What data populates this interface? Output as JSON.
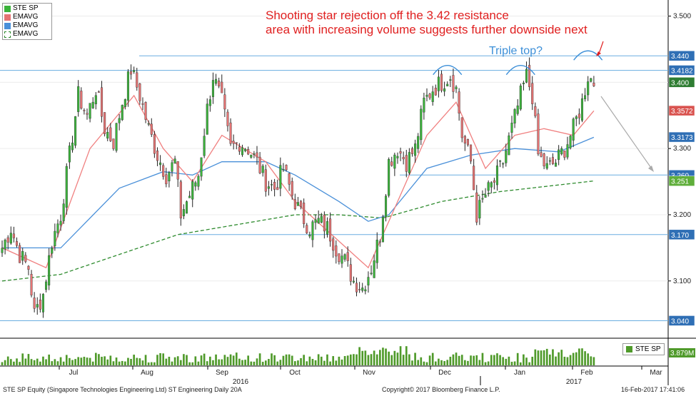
{
  "legend": {
    "items": [
      {
        "label": "STE SP",
        "color": "#3bb33b"
      },
      {
        "label": "EMAVG",
        "color": "#e57373"
      },
      {
        "label": "EMAVG",
        "color": "#4a90d9"
      },
      {
        "label": "EMAVG",
        "color": "#2e8b2e"
      }
    ]
  },
  "annotations": {
    "main_line1": "Shooting star rejection off the 3.42 resistance",
    "main_line2": "area with increasing volume suggests further downside next",
    "triple_top": "Triple top?"
  },
  "volume_legend": "STE SP",
  "footer": {
    "left": "STE SP Equity (Singapore Technologies Engineering Ltd) ST Engineering  Daily 20A",
    "center": "Copyright© 2017 Bloomberg Finance L.P.",
    "right": "16-Feb-2017 17:41:06"
  },
  "colors": {
    "up": "#3bb33b",
    "down": "#e57373",
    "ema_short": "#f08080",
    "ema_mid": "#4a90d9",
    "ema_long": "#2e8b2e",
    "hline": "#6aaee0",
    "annotation_red": "#e02020",
    "annotation_blue": "#3c8fd8",
    "tag_blue": "#2f6fb5",
    "tag_red": "#d9534f",
    "tag_green": "#2e7d32",
    "tag_lightgreen": "#5fae3a"
  },
  "chart_data": {
    "type": "candlestick",
    "y_range": [
      3.02,
      3.52
    ],
    "y_ticks": [
      3.1,
      3.2,
      3.3,
      3.4,
      3.5
    ],
    "y_tick_labels": [
      "3.100",
      "3.200",
      "3.300",
      "3.400",
      "3.500"
    ],
    "horizontal_levels": [
      3.44,
      3.418,
      3.26,
      3.17,
      3.04
    ],
    "price_tags": [
      {
        "label": "3.440",
        "value": 3.44,
        "color_key": "tag_blue"
      },
      {
        "label": "3.4182",
        "value": 3.4182,
        "color_key": "tag_blue"
      },
      {
        "label": "3.400",
        "value": 3.4,
        "color_key": "tag_green"
      },
      {
        "label": "3.3572",
        "value": 3.3572,
        "color_key": "tag_red"
      },
      {
        "label": "3.3173",
        "value": 3.3173,
        "color_key": "tag_blue"
      },
      {
        "label": "3.260",
        "value": 3.26,
        "color_key": "tag_blue"
      },
      {
        "label": "3.251",
        "value": 3.251,
        "color_key": "tag_lightgreen"
      },
      {
        "label": "3.170",
        "value": 3.17,
        "color_key": "tag_blue"
      },
      {
        "label": "3.040",
        "value": 3.04,
        "color_key": "tag_blue"
      }
    ],
    "month_labels": [
      "Jul",
      "Aug",
      "Sep",
      "Oct",
      "Nov",
      "Dec",
      "Jan",
      "Feb",
      "Mar"
    ],
    "year_labels": [
      "2016",
      "2017"
    ],
    "volume_tag": "3.879M",
    "waypoints": [
      [
        0,
        3.15
      ],
      [
        3,
        3.18
      ],
      [
        6,
        3.14
      ],
      [
        9,
        3.12
      ],
      [
        11,
        3.05
      ],
      [
        14,
        3.08
      ],
      [
        17,
        3.16
      ],
      [
        20,
        3.2
      ],
      [
        23,
        3.29
      ],
      [
        26,
        3.38
      ],
      [
        29,
        3.35
      ],
      [
        32,
        3.39
      ],
      [
        35,
        3.33
      ],
      [
        38,
        3.31
      ],
      [
        41,
        3.37
      ],
      [
        44,
        3.42
      ],
      [
        47,
        3.38
      ],
      [
        50,
        3.33
      ],
      [
        53,
        3.29
      ],
      [
        56,
        3.26
      ],
      [
        59,
        3.28
      ],
      [
        61,
        3.2
      ],
      [
        64,
        3.23
      ],
      [
        67,
        3.26
      ],
      [
        70,
        3.36
      ],
      [
        72,
        3.41
      ],
      [
        75,
        3.37
      ],
      [
        78,
        3.3
      ],
      [
        81,
        3.31
      ],
      [
        84,
        3.3
      ],
      [
        87,
        3.28
      ],
      [
        90,
        3.25
      ],
      [
        93,
        3.24
      ],
      [
        96,
        3.27
      ],
      [
        99,
        3.23
      ],
      [
        102,
        3.2
      ],
      [
        105,
        3.18
      ],
      [
        108,
        3.19
      ],
      [
        111,
        3.18
      ],
      [
        114,
        3.15
      ],
      [
        117,
        3.13
      ],
      [
        120,
        3.1
      ],
      [
        123,
        3.09
      ],
      [
        126,
        3.12
      ],
      [
        129,
        3.17
      ],
      [
        132,
        3.28
      ],
      [
        135,
        3.3
      ],
      [
        138,
        3.28
      ],
      [
        141,
        3.3
      ],
      [
        144,
        3.37
      ],
      [
        147,
        3.39
      ],
      [
        150,
        3.4
      ],
      [
        153,
        3.41
      ],
      [
        155,
        3.39
      ],
      [
        157,
        3.32
      ],
      [
        160,
        3.28
      ],
      [
        162,
        3.2
      ],
      [
        165,
        3.23
      ],
      [
        168,
        3.25
      ],
      [
        171,
        3.28
      ],
      [
        174,
        3.33
      ],
      [
        177,
        3.38
      ],
      [
        179,
        3.41
      ],
      [
        181,
        3.38
      ],
      [
        183,
        3.29
      ],
      [
        186,
        3.27
      ],
      [
        189,
        3.28
      ],
      [
        192,
        3.3
      ],
      [
        195,
        3.33
      ],
      [
        198,
        3.37
      ],
      [
        200,
        3.41
      ],
      [
        202,
        3.4
      ]
    ],
    "bars": 203,
    "ema_short_points": [
      [
        0,
        3.15
      ],
      [
        15,
        3.12
      ],
      [
        30,
        3.3
      ],
      [
        45,
        3.38
      ],
      [
        55,
        3.3
      ],
      [
        65,
        3.25
      ],
      [
        75,
        3.32
      ],
      [
        90,
        3.28
      ],
      [
        100,
        3.22
      ],
      [
        115,
        3.16
      ],
      [
        125,
        3.12
      ],
      [
        133,
        3.2
      ],
      [
        145,
        3.32
      ],
      [
        155,
        3.37
      ],
      [
        165,
        3.27
      ],
      [
        175,
        3.32
      ],
      [
        185,
        3.33
      ],
      [
        195,
        3.32
      ],
      [
        202,
        3.357
      ]
    ],
    "ema_mid_points": [
      [
        0,
        3.15
      ],
      [
        20,
        3.15
      ],
      [
        40,
        3.24
      ],
      [
        55,
        3.265
      ],
      [
        65,
        3.26
      ],
      [
        75,
        3.28
      ],
      [
        90,
        3.28
      ],
      [
        100,
        3.26
      ],
      [
        115,
        3.22
      ],
      [
        125,
        3.19
      ],
      [
        132,
        3.2
      ],
      [
        145,
        3.27
      ],
      [
        160,
        3.29
      ],
      [
        175,
        3.3
      ],
      [
        190,
        3.295
      ],
      [
        202,
        3.317
      ]
    ],
    "ema_long_points": [
      [
        0,
        3.1
      ],
      [
        20,
        3.11
      ],
      [
        40,
        3.14
      ],
      [
        60,
        3.17
      ],
      [
        80,
        3.185
      ],
      [
        100,
        3.2
      ],
      [
        115,
        3.2
      ],
      [
        130,
        3.195
      ],
      [
        150,
        3.22
      ],
      [
        170,
        3.235
      ],
      [
        190,
        3.245
      ],
      [
        202,
        3.251
      ]
    ]
  }
}
